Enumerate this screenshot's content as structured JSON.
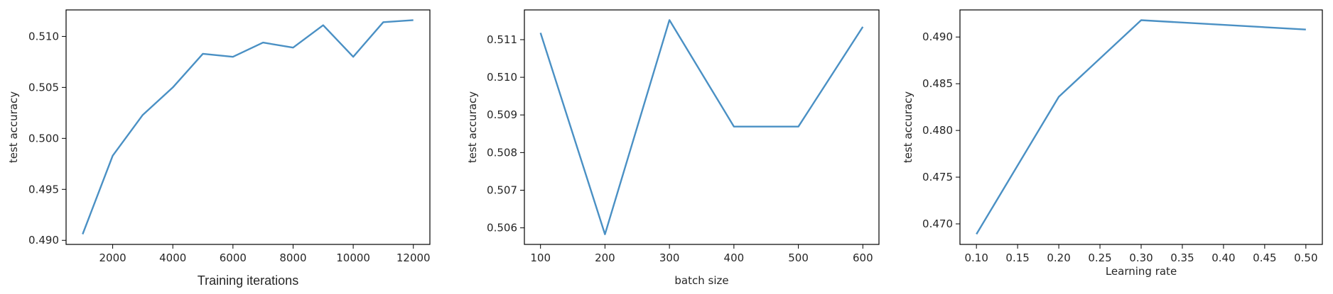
{
  "chart_data": [
    {
      "type": "line",
      "title": "",
      "xlabel": "Training iterations",
      "ylabel": "test accuracy",
      "x": [
        1000,
        2000,
        3000,
        4000,
        5000,
        6000,
        7000,
        8000,
        9000,
        10000,
        11000,
        12000
      ],
      "values": [
        0.4906,
        0.4983,
        0.5023,
        0.505,
        0.5083,
        0.508,
        0.5094,
        0.5089,
        0.5111,
        0.508,
        0.5114,
        0.5116
      ],
      "xlim": [
        450,
        12550
      ],
      "ylim": [
        0.4896,
        0.5126
      ],
      "xticks": [
        2000,
        4000,
        6000,
        8000,
        10000,
        12000
      ],
      "xtick_labels": [
        "2000",
        "4000",
        "6000",
        "8000",
        "10000",
        "12000"
      ],
      "yticks": [
        0.49,
        0.495,
        0.5,
        0.505,
        0.51
      ],
      "ytick_labels": [
        "0.490",
        "0.495",
        "0.500",
        "0.505",
        "0.510"
      ],
      "grid": false,
      "color": "#4a90c4"
    },
    {
      "type": "line",
      "title": "",
      "xlabel": "batch size",
      "ylabel": "test accuracy",
      "x": [
        100,
        200,
        300,
        400,
        500,
        600
      ],
      "values": [
        0.51118,
        0.50583,
        0.51152,
        0.50869,
        0.50869,
        0.51134
      ],
      "xlim": [
        75,
        625
      ],
      "ylim": [
        0.50556,
        0.51179
      ],
      "xticks": [
        100,
        200,
        300,
        400,
        500,
        600
      ],
      "xtick_labels": [
        "100",
        "200",
        "300",
        "400",
        "500",
        "600"
      ],
      "yticks": [
        0.506,
        0.507,
        0.508,
        0.509,
        0.51,
        0.511
      ],
      "ytick_labels": [
        "0.506",
        "0.507",
        "0.508",
        "0.509",
        "0.510",
        "0.511"
      ],
      "grid": false,
      "color": "#4a90c4"
    },
    {
      "type": "line",
      "title": "",
      "xlabel": "Learning rate",
      "ylabel": "test accuracy",
      "x": [
        0.1,
        0.2,
        0.3,
        0.5
      ],
      "values": [
        0.4689,
        0.4836,
        0.4918,
        0.4908
      ],
      "xlim": [
        0.08,
        0.52
      ],
      "ylim": [
        0.4678,
        0.4929
      ],
      "xticks": [
        0.1,
        0.15,
        0.2,
        0.25,
        0.3,
        0.35,
        0.4,
        0.45,
        0.5
      ],
      "xtick_labels": [
        "0.10",
        "0.15",
        "0.20",
        "0.25",
        "0.30",
        "0.35",
        "0.40",
        "0.45",
        "0.50"
      ],
      "yticks": [
        0.47,
        0.475,
        0.48,
        0.485,
        0.49
      ],
      "ytick_labels": [
        "0.470",
        "0.475",
        "0.480",
        "0.485",
        "0.490"
      ],
      "grid": false,
      "color": "#4a90c4"
    }
  ]
}
